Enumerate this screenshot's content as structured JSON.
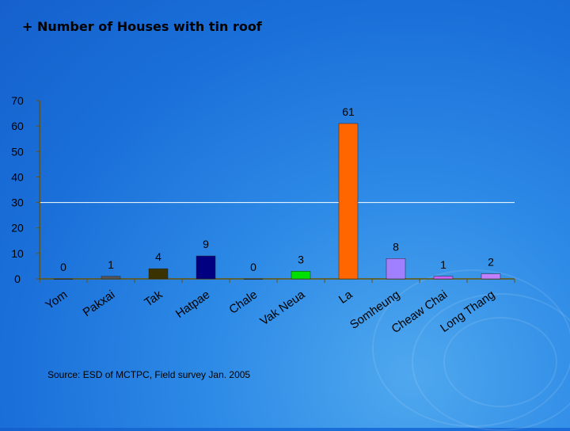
{
  "slide": {
    "title": "+ Number of Houses with tin roof",
    "source": "Source: ESD of MCTPC, Field survey Jan. 2005"
  },
  "chart_data": {
    "type": "bar",
    "title": "",
    "xlabel": "",
    "ylabel": "",
    "ylim": [
      0,
      70
    ],
    "yticks": [
      0,
      10,
      20,
      30,
      40,
      50,
      60,
      70
    ],
    "grid": false,
    "reference_line": 30,
    "categories": [
      "Yom",
      "Pakxai",
      "Tak",
      "Hatpae",
      "Chale",
      "Vak Neua",
      "La",
      "Somheung",
      "Cheaw Chai",
      "Long Thang"
    ],
    "values": [
      0,
      1,
      4,
      9,
      0,
      3,
      61,
      8,
      1,
      2
    ],
    "bar_colors": [
      "#555555",
      "#555555",
      "#3a3200",
      "#000080",
      "#555555",
      "#00e000",
      "#ff6600",
      "#a080ff",
      "#d060ff",
      "#c080ff"
    ]
  },
  "colors": {
    "axis": "#6b5200",
    "tick_text": "#000000",
    "reference_line": "#ffffff"
  }
}
